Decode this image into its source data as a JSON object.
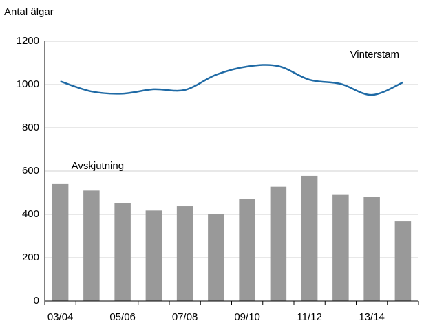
{
  "chart_data": {
    "type": "bar-line",
    "y_label": "Antal älgar",
    "categories": [
      "03/04",
      null,
      "05/06",
      null,
      "07/08",
      null,
      "09/10",
      null,
      "11/12",
      null,
      "13/14",
      null
    ],
    "series": [
      {
        "name": "Avskjutning",
        "type": "bar",
        "color": "#999999",
        "values": [
          540,
          510,
          452,
          418,
          438,
          400,
          472,
          528,
          578,
          490,
          480,
          368
        ]
      },
      {
        "name": "Vinterstam",
        "type": "line",
        "color": "#1f6aa5",
        "values": [
          1015,
          968,
          958,
          978,
          975,
          1045,
          1083,
          1085,
          1022,
          1003,
          952,
          1010
        ]
      }
    ],
    "ylim": [
      0,
      1200
    ],
    "yticks": [
      0,
      200,
      400,
      600,
      800,
      1000,
      1200
    ],
    "grid": true
  }
}
